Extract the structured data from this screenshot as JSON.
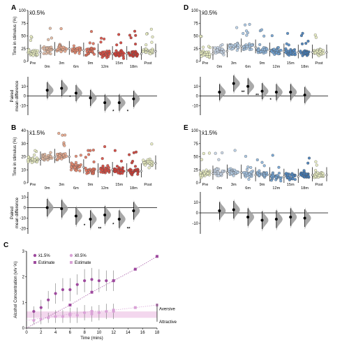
{
  "panels": {
    "A": {
      "letter": "A",
      "condition": "ẍ0.5%"
    },
    "B": {
      "letter": "B",
      "condition": "ẍ1.5%"
    },
    "C": {
      "letter": "C"
    },
    "D": {
      "letter": "D",
      "condition": "ẍ0.5%"
    },
    "E": {
      "letter": "E",
      "condition": "ẍ1.5%"
    }
  },
  "labels": {
    "time_in_stimulus": "Time in stimulus (%)",
    "paired_line1": "Paired",
    "paired_line2": "mean difference",
    "alcohol_y": "Alcohol Concentration (v/v %)",
    "time_x": "Time (mins)",
    "aversive": "Aversive",
    "attractive": "Attractive",
    "sig_double": "**",
    "sig_single": "*"
  },
  "colors": {
    "pre": "#c9c97a",
    "A_series": [
      "#e0b79e",
      "#e8a68a",
      "#e3866c",
      "#dc6a54",
      "#d94a3f",
      "#d23a32",
      "#c93a32"
    ],
    "D_series": [
      "#c5d4e6",
      "#b5cde6",
      "#a4c3e2",
      "#8ab1d8",
      "#6d9fcf",
      "#4f87c2",
      "#3f78b4"
    ],
    "gray_sig": "#999999",
    "purple_dark": "#9e4a9e",
    "purple_light": "#d9a2d6",
    "band": "#f3d7ee"
  },
  "chart_data": [
    {
      "panel": "A",
      "type": "scatter",
      "categories": [
        "Pre",
        "0m",
        "3m",
        "6m",
        "9m",
        "12m",
        "15m",
        "18m",
        "Post"
      ],
      "medians": [
        18,
        23,
        25,
        22,
        20,
        15,
        15,
        15,
        20
      ],
      "ylim": [
        0,
        100
      ],
      "yticks": [
        0,
        25,
        50,
        75,
        100
      ],
      "ylabel": "Time in stimulus (%)",
      "diff": {
        "type": "estimation",
        "means": [
          6,
          8,
          3,
          -2,
          -7,
          -7,
          -3
        ],
        "ylim": [
          -20,
          20
        ],
        "yticks": [
          -10,
          0,
          10
        ],
        "ylabel": "Paired mean difference",
        "significance": [
          "",
          "*",
          "",
          "",
          "*",
          "*",
          ""
        ]
      }
    },
    {
      "panel": "B",
      "type": "scatter",
      "categories": [
        "Pre",
        "0m",
        "3m",
        "6m",
        "9m",
        "12m",
        "15m",
        "18m",
        "Post"
      ],
      "medians": [
        18,
        20,
        20,
        12,
        9,
        10,
        9,
        9,
        15
      ],
      "ylim": [
        0,
        40
      ],
      "yticks": [
        0,
        10,
        20,
        30,
        40
      ],
      "ylabel": "Time in stimulus (%)",
      "diff": {
        "type": "estimation",
        "means": [
          0,
          -1,
          -8,
          -11,
          -7,
          -11,
          -3
        ],
        "ylim": [
          -25,
          15
        ],
        "yticks": [
          -20,
          -10,
          0,
          10
        ],
        "ylabel": "Paired mean difference",
        "significance": [
          "",
          "",
          "*",
          "**",
          "*",
          "**",
          ""
        ]
      }
    },
    {
      "panel": "D",
      "type": "scatter",
      "categories": [
        "Pre",
        "0m",
        "3m",
        "6m",
        "9m",
        "12m",
        "15m",
        "18m",
        "Post"
      ],
      "medians": [
        15,
        20,
        30,
        28,
        22,
        20,
        18,
        18,
        18
      ],
      "ylim": [
        0,
        100
      ],
      "yticks": [
        0,
        25,
        50,
        75,
        100
      ],
      "ylabel": "",
      "diff": {
        "type": "estimation",
        "means": [
          4,
          13,
          10,
          5,
          4,
          4,
          1
        ],
        "ylim": [
          -20,
          20
        ],
        "yticks": [
          -10,
          0,
          10
        ],
        "ylabel": "",
        "significance": [
          "",
          "**",
          "**",
          "*",
          "",
          "",
          ""
        ]
      }
    },
    {
      "panel": "E",
      "type": "scatter",
      "categories": [
        "Pre",
        "0m",
        "3m",
        "6m",
        "9m",
        "12m",
        "15m",
        "18m",
        "Post"
      ],
      "medians": [
        18,
        20,
        20,
        15,
        15,
        12,
        12,
        15,
        15
      ],
      "ylim": [
        0,
        100
      ],
      "yticks": [
        0,
        25,
        50,
        75,
        100
      ],
      "ylabel": "",
      "diff": {
        "type": "estimation",
        "means": [
          2,
          3,
          -4,
          -7,
          -6,
          -4,
          -5
        ],
        "ylim": [
          -20,
          20
        ],
        "yticks": [
          -10,
          0,
          10
        ],
        "ylabel": "",
        "significance": [
          "",
          "",
          "",
          "",
          "",
          "",
          ""
        ]
      }
    },
    {
      "panel": "C",
      "type": "scatter",
      "xlabel": "Time (mins)",
      "ylabel": "Alcohol Concentration (v/v %)",
      "xlim": [
        0,
        18
      ],
      "ylim": [
        0,
        3
      ],
      "xticks": [
        0,
        2,
        4,
        6,
        8,
        10,
        12,
        14,
        16,
        18
      ],
      "yticks": [
        0,
        1,
        2,
        3
      ],
      "legend": "top-left",
      "series": [
        {
          "name": "ẍ1.5%",
          "x": [
            1,
            2,
            3,
            4,
            5,
            6,
            7,
            8,
            9,
            10,
            11,
            12
          ],
          "y": [
            0.65,
            0.8,
            1.1,
            1.35,
            1.5,
            1.5,
            1.7,
            1.85,
            1.9,
            1.85,
            1.85,
            1.85
          ],
          "err": [
            0.2,
            0.3,
            0.35,
            0.4,
            0.45,
            0.45,
            0.4,
            0.45,
            0.45,
            0.45,
            0.4,
            0.4
          ]
        },
        {
          "name": "Estimate",
          "x": [
            0,
            6,
            9,
            12,
            15,
            18
          ],
          "y": [
            0,
            0.9,
            1.4,
            1.85,
            2.3,
            2.8
          ]
        },
        {
          "name": "ẍ0.5%",
          "x": [
            1,
            2,
            3,
            4,
            5,
            6,
            7,
            8,
            9,
            10,
            11,
            12
          ],
          "y": [
            0.3,
            0.35,
            0.4,
            0.45,
            0.45,
            0.5,
            0.5,
            0.6,
            0.55,
            0.6,
            0.65,
            0.65
          ],
          "err": [
            0.15,
            0.2,
            0.2,
            0.25,
            0.25,
            0.3,
            0.3,
            0.3,
            0.3,
            0.3,
            0.3,
            0.3
          ]
        },
        {
          "name": "Estimate",
          "x": [
            0,
            6,
            9,
            12,
            15,
            18
          ],
          "y": [
            0.3,
            0.55,
            0.65,
            0.7,
            0.8,
            0.9
          ]
        }
      ],
      "band": [
        0.4,
        0.65
      ],
      "annotations": [
        "Aversive",
        "Attractive"
      ]
    }
  ]
}
